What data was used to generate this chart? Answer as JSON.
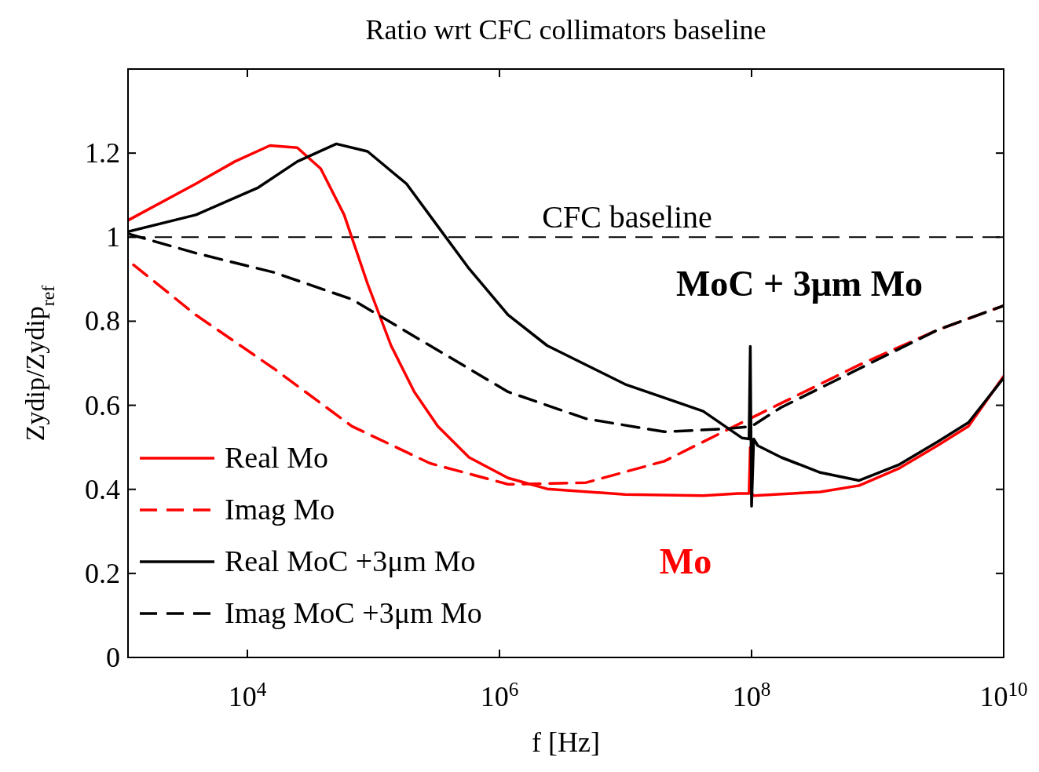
{
  "chart_data": {
    "type": "line",
    "title": "Ratio wrt CFC collimators baseline",
    "xlabel": "f [Hz]",
    "ylabel": "Zydip/Zydip$_{ref}$",
    "log": "x",
    "xlim": [
      1130,
      10000000000.0
    ],
    "xticks": [
      {
        "value": 10000.0,
        "label": "10$^{4}$"
      },
      {
        "value": 1000000.0,
        "label": "10$^{6}$"
      },
      {
        "value": 100000000.0,
        "label": "10$^{8}$"
      },
      {
        "value": 10000000000.0,
        "label": "10$^{10}$"
      }
    ],
    "ylim": [
      0,
      1.4
    ],
    "yticks": [
      0,
      0.2,
      0.4,
      0.6,
      0.8,
      1,
      1.2
    ],
    "grid": false,
    "legend": "bottom left",
    "ref_lines": [
      {
        "axis": "y",
        "value": 1,
        "label": "CFC baseline",
        "color": "#000000",
        "line_style": "dashed"
      }
    ],
    "annotations": [
      "MoC + 3μm Mo",
      "Mo"
    ],
    "series": [
      {
        "name": "Real  Mo",
        "color": "#ff0000",
        "line_style": "solid",
        "x": [
          1130,
          3900,
          7960,
          15100,
          24900,
          38200,
          58600,
          89900,
          138000.0,
          211000.0,
          324000.0,
          574000.0,
          1170000.0,
          2390000.0,
          9930000.0,
          41300000.0,
          78500000.0,
          95500000.0,
          97700000.0,
          100000000.0,
          104000000.0,
          351000000.0,
          714000000.0,
          1460000000.0,
          2980000000.0,
          5260000000.0,
          10000000000.0
        ],
        "values": [
          1.04,
          1.127,
          1.18,
          1.218,
          1.213,
          1.163,
          1.053,
          0.889,
          0.742,
          0.632,
          0.55,
          0.476,
          0.427,
          0.401,
          0.388,
          0.385,
          0.39,
          0.39,
          0.5,
          0.39,
          0.385,
          0.394,
          0.409,
          0.449,
          0.504,
          0.55,
          0.669
        ]
      },
      {
        "name": "Imag Mo",
        "color": "#ff0000",
        "line_style": "dashed",
        "x": [
          1250,
          3900,
          16300,
          67600,
          281000.0,
          1170000.0,
          4860000.0,
          20300000.0,
          73100000.0,
          172000000.0,
          714000000.0,
          2980000000.0,
          10000000000.0
        ],
        "values": [
          0.934,
          0.815,
          0.687,
          0.55,
          0.462,
          0.412,
          0.416,
          0.467,
          0.55,
          0.605,
          0.696,
          0.779,
          0.837
        ]
      },
      {
        "name": "Real MoC +3μm Mo",
        "color": "#000000",
        "line_style": "solid",
        "x": [
          1130,
          3900,
          12200,
          24900,
          50800,
          89900,
          183000.0,
          324000.0,
          574000.0,
          1170000.0,
          2390000.0,
          9930000.0,
          41300000.0,
          84300000.0,
          95500000.0,
          97700000.0,
          100000000.0,
          104000000.0,
          112000000.0,
          172000000.0,
          351000000.0,
          714000000.0,
          1460000000.0,
          2980000000.0,
          5260000000.0,
          10000000000.0
        ],
        "values": [
          1.013,
          1.053,
          1.118,
          1.18,
          1.222,
          1.204,
          1.127,
          1.026,
          0.925,
          0.815,
          0.742,
          0.65,
          0.586,
          0.522,
          0.52,
          0.74,
          0.36,
          0.52,
          0.504,
          0.476,
          0.44,
          0.421,
          0.458,
          0.513,
          0.559,
          0.665
        ]
      },
      {
        "name": "Imag MoC +3μm Mo",
        "color": "#000000",
        "line_style": "dashed",
        "x": [
          1130,
          3900,
          16300,
          67600,
          281000.0,
          1170000.0,
          4860000.0,
          20300000.0,
          63400000.0,
          100000000.0,
          172000000.0,
          714000000.0,
          2980000000.0,
          10000000000.0
        ],
        "values": [
          1.008,
          0.962,
          0.916,
          0.852,
          0.742,
          0.632,
          0.568,
          0.537,
          0.544,
          0.55,
          0.595,
          0.687,
          0.779,
          0.837
        ]
      }
    ]
  }
}
